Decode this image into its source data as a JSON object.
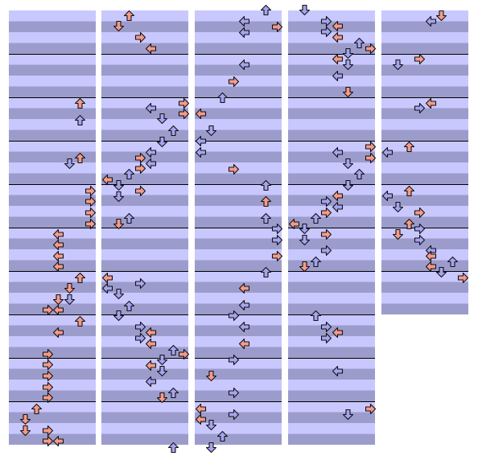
{
  "palette": {
    "lane_light": "#c8c8ff",
    "lane_dark": "#9c9ccc",
    "bar_line": "#000000",
    "arrow_red": "#f59a8a",
    "arrow_blue": "#a4a4f2"
  },
  "icons": {
    "left": "left-arrow-icon",
    "right": "right-arrow-icon",
    "up": "up-arrow-icon",
    "down": "down-arrow-icon"
  },
  "chart_data": {
    "type": "step-chart",
    "columns": 5,
    "lanes": [
      "left",
      "down",
      "up",
      "right"
    ],
    "rows_per_measure": 4,
    "measures_per_column": [
      10,
      10,
      10,
      10,
      7
    ]
  }
}
